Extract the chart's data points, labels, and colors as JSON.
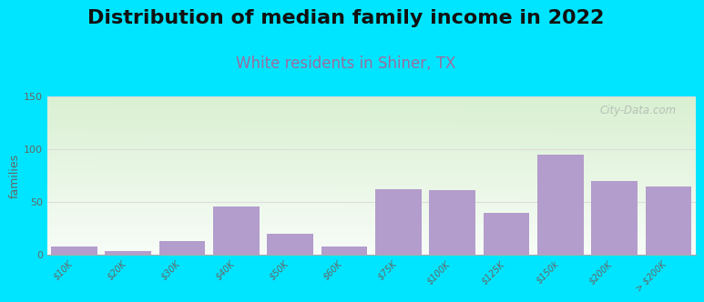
{
  "title": "Distribution of median family income in 2022",
  "subtitle": "White residents in Shiner, TX",
  "ylabel": "families",
  "categories": [
    "$10K",
    "$20K",
    "$30K",
    "$40K",
    "$50K",
    "$60K",
    "$75K",
    "$100K",
    "$125K",
    "$150k",
    "$200K",
    "> $200K"
  ],
  "values": [
    8,
    3,
    13,
    46,
    20,
    8,
    62,
    61,
    40,
    95,
    70,
    65
  ],
  "bar_color": "#b39dcc",
  "ylim": [
    0,
    150
  ],
  "yticks": [
    0,
    50,
    100,
    150
  ],
  "background_outer": "#00e5ff",
  "background_inner_top_left": "#d4edc0",
  "background_inner_top_right": "#e8f0e8",
  "background_inner_bottom": "#f5f8f5",
  "title_fontsize": 16,
  "subtitle_fontsize": 12,
  "subtitle_color": "#9b6da0",
  "watermark": "City-Data.com",
  "watermark_color": "#b0b8b0",
  "grid_color": "#dddddd"
}
